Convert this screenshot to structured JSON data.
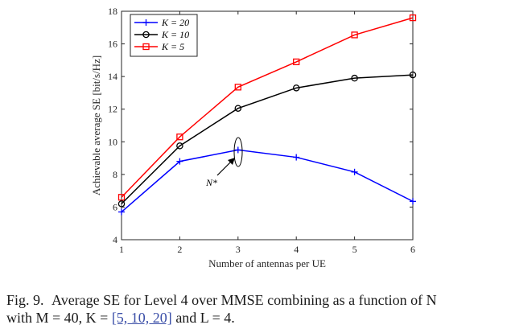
{
  "chart_data": {
    "type": "line",
    "x": [
      1,
      2,
      3,
      4,
      5,
      6
    ],
    "xticks": [
      "1",
      "2",
      "3",
      "4",
      "5",
      "6"
    ],
    "yticks": [
      "4",
      "6",
      "8",
      "10",
      "12",
      "14",
      "16",
      "18"
    ],
    "xlim": [
      1,
      6
    ],
    "ylim": [
      4,
      18
    ],
    "xlabel": "Number of antennas per UE",
    "ylabel": "Achievable average SE [bit/s/Hz]",
    "grid": false,
    "legend_position": "top-left",
    "series": [
      {
        "name": "K = 20",
        "color": "#0000ff",
        "marker": "plus",
        "values": [
          5.7,
          8.8,
          9.5,
          9.05,
          8.15,
          6.35
        ]
      },
      {
        "name": "K = 10",
        "color": "#000000",
        "marker": "circle",
        "values": [
          6.2,
          9.75,
          12.05,
          13.3,
          13.9,
          14.1
        ]
      },
      {
        "name": "K = 5",
        "color": "#ff0000",
        "marker": "square",
        "values": [
          6.6,
          10.3,
          13.35,
          14.9,
          16.55,
          17.6
        ]
      }
    ],
    "annotation": {
      "text": "N*",
      "x": 3,
      "y": 9.5
    }
  },
  "caption": {
    "label": "Fig. 9.",
    "line1": "Average SE for Level 4 over MMSE combining as a function of N",
    "line2_pre": "with M = 40, K = ",
    "line2_ref": "[5, 10, 20]",
    "line2_post": " and L = 4."
  }
}
